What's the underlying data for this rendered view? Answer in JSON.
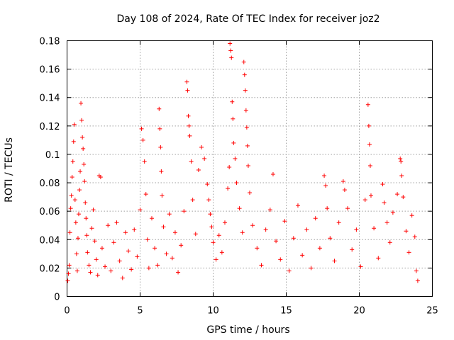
{
  "chart_data": {
    "type": "scatter",
    "title": "Day 108 of 2024, Rate Of TEC Index for receiver joz2",
    "xlabel": "GPS time / hours",
    "ylabel": "ROTI / TECUs",
    "xlim": [
      0,
      25
    ],
    "ylim": [
      0,
      0.18
    ],
    "x_ticks": [
      0,
      5,
      10,
      15,
      20,
      25
    ],
    "y_ticks": [
      0,
      0.02,
      0.04,
      0.06,
      0.08,
      0.1,
      0.12,
      0.14,
      0.16,
      0.18
    ],
    "x_tick_labels": [
      "0",
      "5",
      "10",
      "15",
      "20",
      "25"
    ],
    "y_tick_labels": [
      "0",
      "0.02",
      "0.04",
      "0.06",
      "0.08",
      "0.1",
      "0.12",
      "0.14",
      "0.16",
      "0.18"
    ],
    "grid": true,
    "marker": "+",
    "color": "#ff0000",
    "series": [
      {
        "name": "ROTI",
        "points": [
          [
            0.05,
            0.011
          ],
          [
            0.1,
            0.016
          ],
          [
            0.15,
            0.022
          ],
          [
            0.2,
            0.045
          ],
          [
            0.25,
            0.062
          ],
          [
            0.3,
            0.071
          ],
          [
            0.35,
            0.084
          ],
          [
            0.4,
            0.095
          ],
          [
            0.45,
            0.109
          ],
          [
            0.5,
            0.121
          ],
          [
            0.55,
            0.068
          ],
          [
            0.6,
            0.052
          ],
          [
            0.65,
            0.03
          ],
          [
            0.7,
            0.018
          ],
          [
            0.75,
            0.041
          ],
          [
            0.8,
            0.058
          ],
          [
            0.85,
            0.075
          ],
          [
            0.9,
            0.088
          ],
          [
            0.95,
            0.136
          ],
          [
            1.0,
            0.124
          ],
          [
            1.05,
            0.112
          ],
          [
            1.1,
            0.104
          ],
          [
            1.15,
            0.093
          ],
          [
            1.2,
            0.081
          ],
          [
            1.25,
            0.066
          ],
          [
            1.3,
            0.055
          ],
          [
            1.35,
            0.043
          ],
          [
            1.4,
            0.031
          ],
          [
            1.5,
            0.022
          ],
          [
            1.6,
            0.017
          ],
          [
            1.7,
            0.048
          ],
          [
            1.8,
            0.061
          ],
          [
            1.9,
            0.039
          ],
          [
            2.0,
            0.026
          ],
          [
            2.1,
            0.015
          ],
          [
            2.2,
            0.085
          ],
          [
            2.3,
            0.084
          ],
          [
            2.4,
            0.034
          ],
          [
            2.6,
            0.021
          ],
          [
            2.8,
            0.05
          ],
          [
            3.0,
            0.018
          ],
          [
            3.2,
            0.038
          ],
          [
            3.4,
            0.052
          ],
          [
            3.6,
            0.025
          ],
          [
            3.8,
            0.013
          ],
          [
            4.0,
            0.045
          ],
          [
            4.2,
            0.032
          ],
          [
            4.4,
            0.019
          ],
          [
            4.6,
            0.047
          ],
          [
            4.8,
            0.028
          ],
          [
            5.0,
            0.061
          ],
          [
            5.1,
            0.118
          ],
          [
            5.2,
            0.11
          ],
          [
            5.3,
            0.095
          ],
          [
            5.4,
            0.072
          ],
          [
            5.5,
            0.04
          ],
          [
            5.6,
            0.02
          ],
          [
            5.8,
            0.055
          ],
          [
            6.0,
            0.034
          ],
          [
            6.2,
            0.022
          ],
          [
            6.3,
            0.132
          ],
          [
            6.35,
            0.118
          ],
          [
            6.4,
            0.105
          ],
          [
            6.45,
            0.088
          ],
          [
            6.5,
            0.071
          ],
          [
            6.6,
            0.049
          ],
          [
            6.8,
            0.03
          ],
          [
            7.0,
            0.058
          ],
          [
            7.2,
            0.027
          ],
          [
            7.4,
            0.045
          ],
          [
            7.6,
            0.017
          ],
          [
            7.8,
            0.036
          ],
          [
            8.0,
            0.06
          ],
          [
            8.2,
            0.151
          ],
          [
            8.25,
            0.145
          ],
          [
            8.3,
            0.127
          ],
          [
            8.35,
            0.12
          ],
          [
            8.4,
            0.113
          ],
          [
            8.5,
            0.095
          ],
          [
            8.6,
            0.068
          ],
          [
            8.8,
            0.044
          ],
          [
            9.0,
            0.089
          ],
          [
            9.2,
            0.105
          ],
          [
            9.4,
            0.097
          ],
          [
            9.6,
            0.079
          ],
          [
            9.7,
            0.068
          ],
          [
            9.8,
            0.058
          ],
          [
            9.9,
            0.049
          ],
          [
            10.0,
            0.038
          ],
          [
            10.2,
            0.026
          ],
          [
            10.4,
            0.043
          ],
          [
            10.6,
            0.031
          ],
          [
            10.8,
            0.052
          ],
          [
            11.0,
            0.076
          ],
          [
            11.1,
            0.091
          ],
          [
            11.15,
            0.178
          ],
          [
            11.2,
            0.173
          ],
          [
            11.25,
            0.168
          ],
          [
            11.3,
            0.137
          ],
          [
            11.35,
            0.125
          ],
          [
            11.4,
            0.108
          ],
          [
            11.5,
            0.097
          ],
          [
            11.6,
            0.08
          ],
          [
            11.8,
            0.062
          ],
          [
            12.0,
            0.045
          ],
          [
            12.1,
            0.165
          ],
          [
            12.15,
            0.156
          ],
          [
            12.2,
            0.145
          ],
          [
            12.25,
            0.131
          ],
          [
            12.3,
            0.119
          ],
          [
            12.35,
            0.106
          ],
          [
            12.4,
            0.092
          ],
          [
            12.5,
            0.073
          ],
          [
            12.7,
            0.05
          ],
          [
            13.0,
            0.034
          ],
          [
            13.3,
            0.022
          ],
          [
            13.6,
            0.047
          ],
          [
            13.9,
            0.061
          ],
          [
            14.1,
            0.086
          ],
          [
            14.3,
            0.039
          ],
          [
            14.6,
            0.026
          ],
          [
            14.9,
            0.053
          ],
          [
            15.2,
            0.018
          ],
          [
            15.5,
            0.041
          ],
          [
            15.8,
            0.064
          ],
          [
            16.1,
            0.029
          ],
          [
            16.4,
            0.047
          ],
          [
            16.7,
            0.02
          ],
          [
            17.0,
            0.055
          ],
          [
            17.3,
            0.034
          ],
          [
            17.6,
            0.085
          ],
          [
            17.7,
            0.078
          ],
          [
            17.8,
            0.062
          ],
          [
            18.0,
            0.041
          ],
          [
            18.3,
            0.025
          ],
          [
            18.6,
            0.052
          ],
          [
            18.9,
            0.081
          ],
          [
            19.0,
            0.075
          ],
          [
            19.2,
            0.062
          ],
          [
            19.5,
            0.033
          ],
          [
            19.8,
            0.047
          ],
          [
            20.1,
            0.021
          ],
          [
            20.4,
            0.068
          ],
          [
            20.6,
            0.135
          ],
          [
            20.65,
            0.12
          ],
          [
            20.7,
            0.107
          ],
          [
            20.75,
            0.092
          ],
          [
            20.8,
            0.071
          ],
          [
            21.0,
            0.048
          ],
          [
            21.3,
            0.027
          ],
          [
            21.6,
            0.079
          ],
          [
            21.7,
            0.066
          ],
          [
            21.9,
            0.052
          ],
          [
            22.1,
            0.038
          ],
          [
            22.3,
            0.059
          ],
          [
            22.6,
            0.072
          ],
          [
            22.8,
            0.097
          ],
          [
            22.85,
            0.095
          ],
          [
            22.9,
            0.085
          ],
          [
            23.0,
            0.07
          ],
          [
            23.2,
            0.046
          ],
          [
            23.4,
            0.031
          ],
          [
            23.6,
            0.057
          ],
          [
            23.8,
            0.042
          ],
          [
            23.9,
            0.018
          ],
          [
            24.0,
            0.011
          ]
        ]
      }
    ]
  }
}
